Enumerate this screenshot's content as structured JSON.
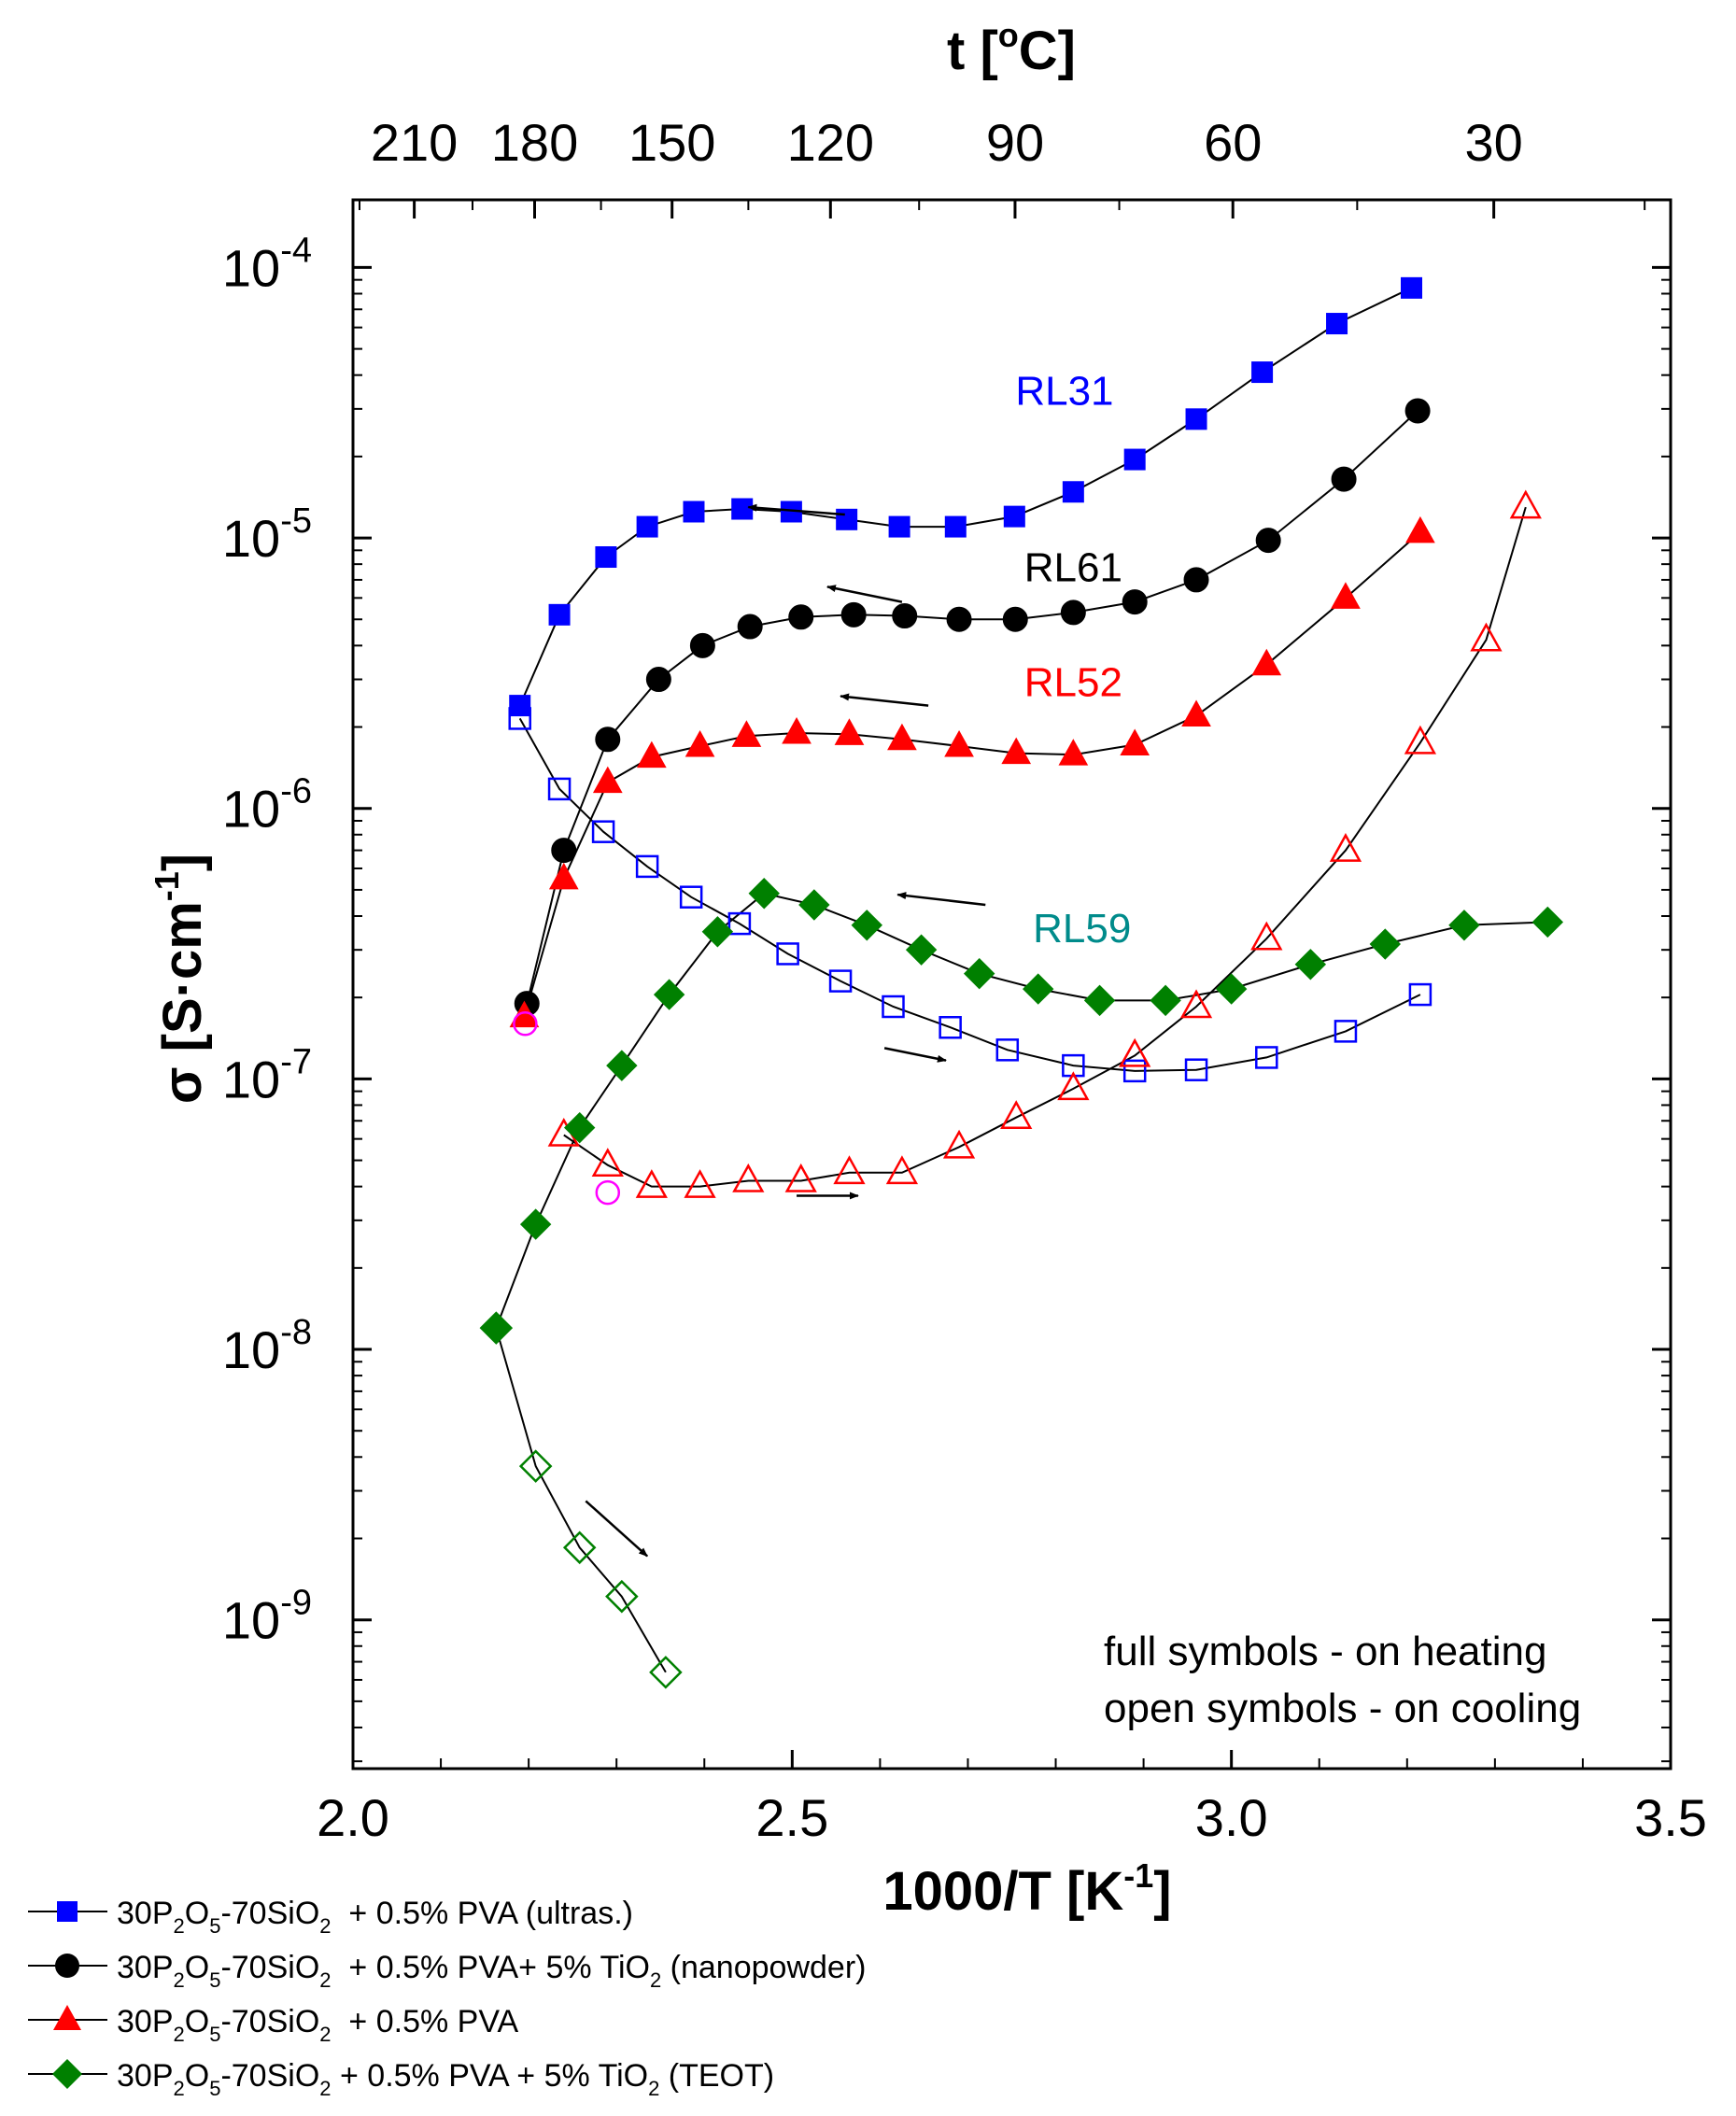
{
  "chart_data": {
    "type": "scatter",
    "xlabel": "1000/T [K",
    "xlabel_sup": "-1",
    "xlabel_end": "]",
    "ylabel": "σ [S·cm",
    "ylabel_sup": "-1",
    "ylabel_end": "]",
    "top_label": "t [",
    "top_label_sup": "o",
    "top_label_end": "C]",
    "xlim": [
      2.0,
      3.5
    ],
    "ylim_log10": [
      -9.55,
      -3.75
    ],
    "yscale": "log",
    "x_ticks": [
      {
        "value": 2.0,
        "label": "2.0"
      },
      {
        "value": 2.5,
        "label": "2.5"
      },
      {
        "value": 3.0,
        "label": "3.0"
      },
      {
        "value": 3.5,
        "label": "3.5"
      }
    ],
    "y_ticks": [
      {
        "exp": -9,
        "base": "10",
        "sup": "-9"
      },
      {
        "exp": -8,
        "base": "10",
        "sup": "-8"
      },
      {
        "exp": -7,
        "base": "10",
        "sup": "-7"
      },
      {
        "exp": -6,
        "base": "10",
        "sup": "-6"
      },
      {
        "exp": -5,
        "base": "10",
        "sup": "-5"
      },
      {
        "exp": -4,
        "base": "10",
        "sup": "-4"
      }
    ],
    "top_ticks": [
      {
        "value": 210,
        "label": "210"
      },
      {
        "value": 180,
        "label": "180"
      },
      {
        "value": 150,
        "label": "150"
      },
      {
        "value": 120,
        "label": "120"
      },
      {
        "value": 90,
        "label": "90"
      },
      {
        "value": 60,
        "label": "60"
      },
      {
        "value": 30,
        "label": "30"
      }
    ],
    "series": [
      {
        "name": "RL31",
        "color": "#0000ff",
        "marker": "square",
        "legend": {
          "a": "30P",
          "s1": "2",
          "b": "O",
          "s2": "5",
          "c": "-70SiO",
          "s3": "2",
          "d": "  + 0.5% PVA (ultras.)"
        },
        "label_pos": {
          "x": 2.81,
          "y": 3.1e-05
        },
        "heating": {
          "x": [
            2.19,
            2.235,
            2.288,
            2.335,
            2.388,
            2.443,
            2.499,
            2.562,
            2.622,
            2.686,
            2.753,
            2.82,
            2.89,
            2.96,
            3.035,
            3.12,
            3.205
          ],
          "y": [
            2.4e-06,
            5.2e-06,
            8.5e-06,
            1.1e-05,
            1.25e-05,
            1.28e-05,
            1.25e-05,
            1.17e-05,
            1.1e-05,
            1.1e-05,
            1.2e-05,
            1.48e-05,
            1.95e-05,
            2.75e-05,
            4.1e-05,
            6.2e-05,
            8.4e-05
          ]
        },
        "cooling": {
          "x": [
            2.19,
            2.235,
            2.285,
            2.335,
            2.385,
            2.44,
            2.495,
            2.555,
            2.615,
            2.68,
            2.745,
            2.82,
            2.89,
            2.96,
            3.04,
            3.13,
            3.215
          ],
          "y": [
            2.15e-06,
            1.18e-06,
            8.2e-07,
            6.1e-07,
            4.7e-07,
            3.75e-07,
            2.9e-07,
            2.3e-07,
            1.85e-07,
            1.55e-07,
            1.28e-07,
            1.12e-07,
            1.07e-07,
            1.08e-07,
            1.2e-07,
            1.5e-07,
            2.05e-07
          ]
        }
      },
      {
        "name": "RL61",
        "color": "#000000",
        "marker": "circle",
        "legend": {
          "a": "30P",
          "s1": "2",
          "b": "O",
          "s2": "5",
          "c": "-70SiO",
          "s3": "2",
          "d": "  + 0.5% PVA+ 5% TiO",
          "s4": "2",
          "e": " (nanopowder)"
        },
        "label_pos": {
          "x": 2.82,
          "y": 6.9e-06
        },
        "heating": {
          "x": [
            2.198,
            2.24,
            2.29,
            2.348,
            2.398,
            2.452,
            2.51,
            2.57,
            2.628,
            2.69,
            2.754,
            2.82,
            2.89,
            2.96,
            3.042,
            3.128,
            3.212
          ],
          "y": [
            1.9e-07,
            7e-07,
            1.8e-06,
            3e-06,
            4e-06,
            4.7e-06,
            5.1e-06,
            5.2e-06,
            5.15e-06,
            5e-06,
            5e-06,
            5.3e-06,
            5.8e-06,
            7e-06,
            9.8e-06,
            1.65e-05,
            2.95e-05
          ]
        }
      },
      {
        "name": "RL52",
        "color": "#ff0000",
        "marker": "triangle",
        "legend": {
          "a": "30P",
          "s1": "2",
          "b": "O",
          "s2": "5",
          "c": "-70SiO",
          "s3": "2",
          "d": "  + 0.5% PVA"
        },
        "label_pos": {
          "x": 2.82,
          "y": 2.6e-06
        },
        "heating": {
          "x": [
            2.195,
            2.24,
            2.29,
            2.34,
            2.395,
            2.448,
            2.505,
            2.565,
            2.625,
            2.69,
            2.755,
            2.82,
            2.89,
            2.96,
            3.04,
            3.13,
            3.215
          ],
          "y": [
            1.7e-07,
            5.5e-07,
            1.25e-06,
            1.55e-06,
            1.7e-06,
            1.85e-06,
            1.9e-06,
            1.88e-06,
            1.8e-06,
            1.7e-06,
            1.6e-06,
            1.58e-06,
            1.72e-06,
            2.2e-06,
            3.4e-06,
            6e-06,
            1.05e-05
          ]
        },
        "cooling": {
          "x": [
            2.24,
            2.29,
            2.34,
            2.395,
            2.45,
            2.51,
            2.565,
            2.625,
            2.69,
            2.755,
            2.82,
            2.89,
            2.96,
            3.04,
            3.13,
            3.215,
            3.29,
            3.335
          ],
          "y": [
            6.2e-08,
            4.8e-08,
            4e-08,
            4e-08,
            4.2e-08,
            4.2e-08,
            4.5e-08,
            4.5e-08,
            5.6e-08,
            7.2e-08,
            9.2e-08,
            1.22e-07,
            1.85e-07,
            3.3e-07,
            7e-07,
            1.75e-06,
            4.2e-06,
            1.3e-05
          ]
        }
      },
      {
        "name": "RL59",
        "color": "#008000",
        "label_color": "#008b8b",
        "marker": "diamond",
        "legend": {
          "a": "30P",
          "s1": "2",
          "b": "O",
          "s2": "5",
          "c": "-70SiO",
          "s3": "2",
          "d": " + 0.5% PVA + 5% TiO",
          "s4": "2",
          "e": " (TEOT)"
        },
        "label_pos": {
          "x": 2.83,
          "y": 3.2e-07
        },
        "heating": {
          "x": [
            2.163,
            2.208,
            2.258,
            2.306,
            2.36,
            2.415,
            2.468,
            2.525,
            2.585,
            2.647,
            2.713,
            2.78,
            2.85,
            2.925,
            3.0,
            3.09,
            3.175,
            3.265,
            3.36
          ],
          "y": [
            1.2e-08,
            2.9e-08,
            6.6e-08,
            1.12e-07,
            2.05e-07,
            3.5e-07,
            4.85e-07,
            4.4e-07,
            3.7e-07,
            3e-07,
            2.45e-07,
            2.15e-07,
            1.95e-07,
            1.95e-07,
            2.15e-07,
            2.65e-07,
            3.15e-07,
            3.7e-07,
            3.8e-07
          ]
        },
        "cooling": {
          "x": [
            2.163,
            2.208,
            2.258,
            2.306,
            2.356
          ],
          "y": [
            1.2e-08,
            3.7e-09,
            1.85e-09,
            1.22e-09,
            6.4e-10
          ]
        }
      }
    ],
    "extra_points": {
      "color": "#ff00ff",
      "marker": "circle-open",
      "x": [
        2.196,
        2.29
      ],
      "y": [
        1.6e-07,
        3.8e-08
      ]
    },
    "arrows": [
      {
        "x1": 2.56,
        "y1": 1.22e-05,
        "x2": 2.45,
        "y2": 1.3e-05
      },
      {
        "x1": 2.625,
        "y1": 5.8e-06,
        "x2": 2.54,
        "y2": 6.6e-06
      },
      {
        "x1": 2.655,
        "y1": 2.4e-06,
        "x2": 2.555,
        "y2": 2.6e-06
      },
      {
        "x1": 2.72,
        "y1": 4.4e-07,
        "x2": 2.62,
        "y2": 4.8e-07
      },
      {
        "x1": 2.605,
        "y1": 1.3e-07,
        "x2": 2.675,
        "y2": 1.17e-07
      },
      {
        "x1": 2.505,
        "y1": 3.7e-08,
        "x2": 2.575,
        "y2": 3.7e-08
      },
      {
        "x1": 2.265,
        "y1": 2.75e-09,
        "x2": 2.335,
        "y2": 1.72e-09
      }
    ],
    "annotations": {
      "line1": "full symbols - on heating",
      "line2": "open symbols - on cooling"
    }
  }
}
